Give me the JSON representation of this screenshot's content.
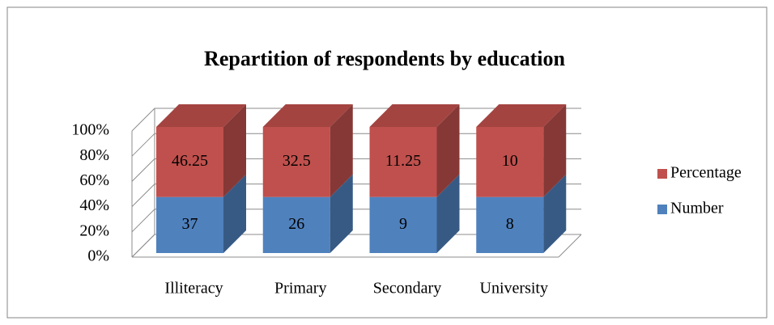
{
  "chart_data": {
    "type": "bar3d_percent_stacked",
    "title": "Repartition of respondents by education",
    "categories": [
      "Illiteracy",
      "Primary",
      "Secondary",
      "University"
    ],
    "series": [
      {
        "name": "Number",
        "color": "#4f81bd",
        "values": [
          37,
          26,
          9,
          8
        ]
      },
      {
        "name": "Percentage",
        "color": "#c0504d",
        "values": [
          46.25,
          32.5,
          11.25,
          10
        ]
      }
    ],
    "ylim": [
      0,
      100
    ],
    "yticks": [
      {
        "value": 0,
        "label": "0%"
      },
      {
        "value": 20,
        "label": "20%"
      },
      {
        "value": 40,
        "label": "40%"
      },
      {
        "value": 60,
        "label": "60%"
      },
      {
        "value": 80,
        "label": "80%"
      },
      {
        "value": 100,
        "label": "100%"
      }
    ],
    "grid": true,
    "legend": "right"
  }
}
